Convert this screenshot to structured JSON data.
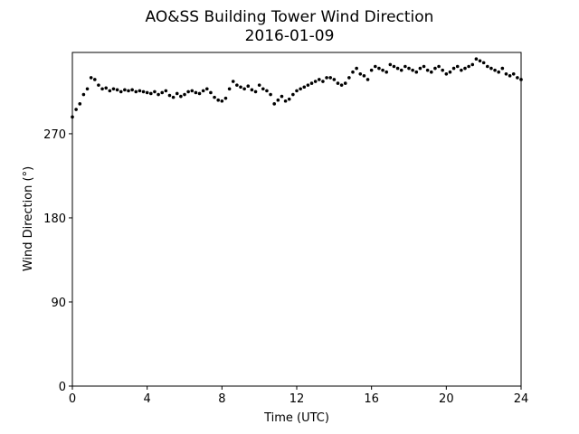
{
  "chart_data": {
    "type": "scatter",
    "title": "AO&SS Building Tower Wind Direction",
    "subtitle": "2016-01-09",
    "x_label": "Time (UTC)",
    "y_label": "Wind Direction (°)",
    "color": "#000000",
    "xlim": [
      0,
      24
    ],
    "xticks": [
      0,
      4,
      8,
      12,
      16,
      20,
      24
    ],
    "ylim": [
      0,
      357
    ],
    "yticks": [
      0,
      90,
      180,
      270
    ],
    "x": [
      0,
      0.2,
      0.4,
      0.6,
      0.8,
      1,
      1.2,
      1.4,
      1.6,
      1.8,
      2,
      2.2,
      2.4,
      2.6,
      2.8,
      3,
      3.2,
      3.4,
      3.6,
      3.8,
      4,
      4.2,
      4.4,
      4.6,
      4.8,
      5,
      5.2,
      5.4,
      5.6,
      5.8,
      6,
      6.2,
      6.4,
      6.6,
      6.8,
      7,
      7.2,
      7.4,
      7.6,
      7.8,
      8,
      8.2,
      8.4,
      8.6,
      8.8,
      9,
      9.2,
      9.4,
      9.6,
      9.8,
      10,
      10.2,
      10.4,
      10.6,
      10.8,
      11,
      11.2,
      11.4,
      11.6,
      11.8,
      12,
      12.2,
      12.4,
      12.6,
      12.8,
      13,
      13.2,
      13.4,
      13.6,
      13.8,
      14,
      14.2,
      14.4,
      14.6,
      14.8,
      15,
      15.2,
      15.4,
      15.6,
      15.8,
      16,
      16.2,
      16.4,
      16.6,
      16.8,
      17,
      17.2,
      17.4,
      17.6,
      17.8,
      18,
      18.2,
      18.4,
      18.6,
      18.8,
      19,
      19.2,
      19.4,
      19.6,
      19.8,
      20,
      20.2,
      20.4,
      20.6,
      20.8,
      21,
      21.2,
      21.4,
      21.6,
      21.8,
      22,
      22.2,
      22.4,
      22.6,
      22.8,
      23,
      23.2,
      23.4,
      23.6,
      23.8,
      24
    ],
    "values": [
      288,
      296,
      302,
      312,
      318,
      330,
      328,
      322,
      318,
      319,
      316,
      318,
      317,
      315,
      317,
      316,
      317,
      315,
      316,
      315,
      314,
      313,
      315,
      312,
      314,
      316,
      311,
      309,
      313,
      310,
      312,
      315,
      316,
      314,
      313,
      316,
      318,
      314,
      309,
      306,
      305,
      308,
      318,
      326,
      322,
      320,
      318,
      321,
      317,
      315,
      322,
      318,
      316,
      312,
      302,
      306,
      310,
      305,
      307,
      312,
      316,
      318,
      320,
      322,
      324,
      326,
      328,
      326,
      330,
      330,
      328,
      324,
      322,
      324,
      330,
      336,
      340,
      334,
      332,
      328,
      338,
      342,
      340,
      338,
      336,
      344,
      342,
      340,
      338,
      342,
      340,
      338,
      336,
      340,
      342,
      338,
      336,
      340,
      342,
      338,
      334,
      336,
      340,
      342,
      338,
      340,
      342,
      344,
      350,
      348,
      346,
      342,
      340,
      338,
      336,
      340,
      334,
      332,
      334,
      330,
      328
    ]
  }
}
